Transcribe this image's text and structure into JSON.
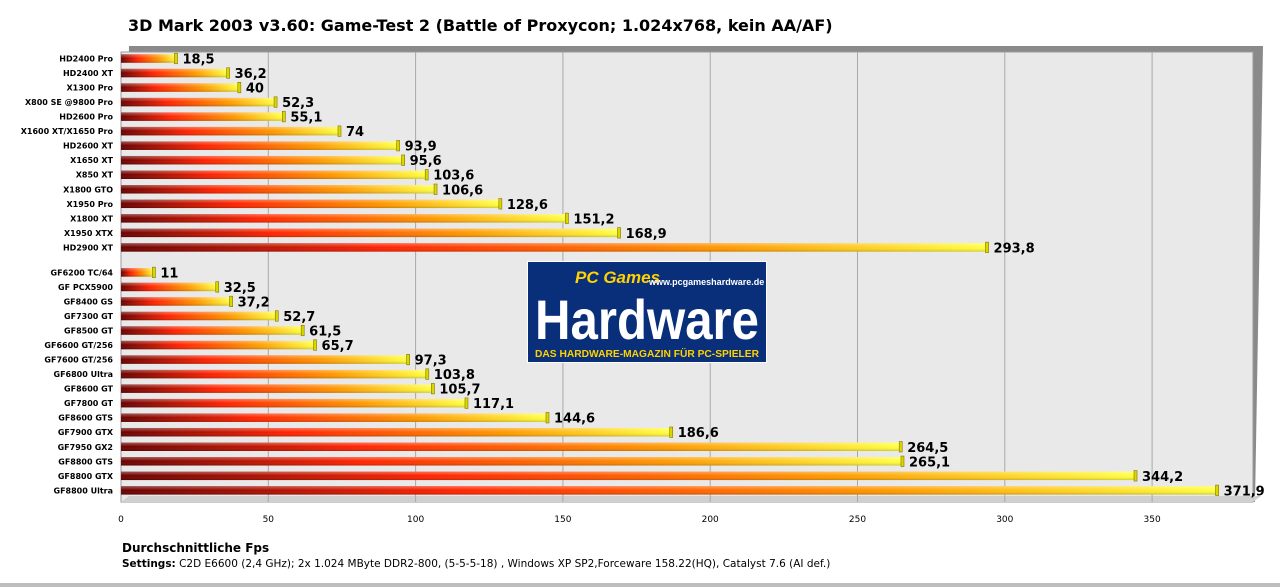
{
  "chart_data": {
    "type": "bar",
    "orientation": "horizontal",
    "title": "3D Mark 2003 v3.60: Game-Test 2 (Battle of Proxycon; 1.024x768, kein AA/AF)",
    "xlabel": "Durchschnittliche Fps",
    "xlim": [
      0,
      380
    ],
    "xticks": [
      0,
      50,
      100,
      150,
      200,
      250,
      300,
      350
    ],
    "grid": "vertical",
    "groups": [
      {
        "categories": [
          "HD2400 Pro",
          "HD2400 XT",
          "X1300 Pro",
          "X800 SE @9800 Pro",
          "HD2600 Pro",
          "X1600 XT/X1650 Pro",
          "HD2600 XT",
          "X1650 XT",
          "X850 XT",
          "X1800 GTO",
          "X1950 Pro",
          "X1800 XT",
          "X1950 XTX",
          "HD2900 XT"
        ],
        "values": [
          18.5,
          36.2,
          40,
          52.3,
          55.1,
          74,
          93.9,
          95.6,
          103.6,
          106.6,
          128.6,
          151.2,
          168.9,
          293.8
        ],
        "labels": [
          "18,5",
          "36,2",
          "40",
          "52,3",
          "55,1",
          "74",
          "93,9",
          "95,6",
          "103,6",
          "106,6",
          "128,6",
          "151,2",
          "168,9",
          "293,8"
        ]
      },
      {
        "categories": [
          "GF6200 TC/64",
          "GF PCX5900",
          "GF8400 GS",
          "GF7300 GT",
          "GF8500 GT",
          "GF6600 GT/256",
          "GF7600 GT/256",
          "GF6800 Ultra",
          "GF8600 GT",
          "GF7800 GT",
          "GF8600 GTS",
          "GF7900 GTX",
          "GF7950 GX2",
          "GF8800 GTS",
          "GF8800 GTX",
          "GF8800 Ultra"
        ],
        "values": [
          11,
          32.5,
          37.2,
          52.7,
          61.5,
          65.7,
          97.3,
          103.8,
          105.7,
          117.1,
          144.6,
          186.6,
          264.5,
          265.1,
          344.2,
          371.9
        ],
        "labels": [
          "11",
          "32,5",
          "37,2",
          "52,7",
          "61,5",
          "65,7",
          "97,3",
          "103,8",
          "105,7",
          "117,1",
          "144,6",
          "186,6",
          "264,5",
          "265,1",
          "344,2",
          "371,9"
        ]
      }
    ],
    "colors": {
      "bar_dark": "#7a0000",
      "bar_mid": "#ff2a00",
      "bar_light": "#ffff30",
      "plot_bg": "#e9e9e9"
    }
  },
  "settings": {
    "label": "Settings:",
    "text": " C2D E6600 (2,4 GHz); 2x 1.024 MByte DDR2-800, (5-5-5-18) , Windows XP SP2,Forceware 158.22(HQ), Catalyst 7.6 (AI def.)"
  },
  "logo": {
    "brand_top": "PC Games",
    "url": "www.pcgameshardware.de",
    "brand": "Hardware",
    "tagline": "DAS HARDWARE-MAGAZIN FÜR PC-SPIELER"
  }
}
